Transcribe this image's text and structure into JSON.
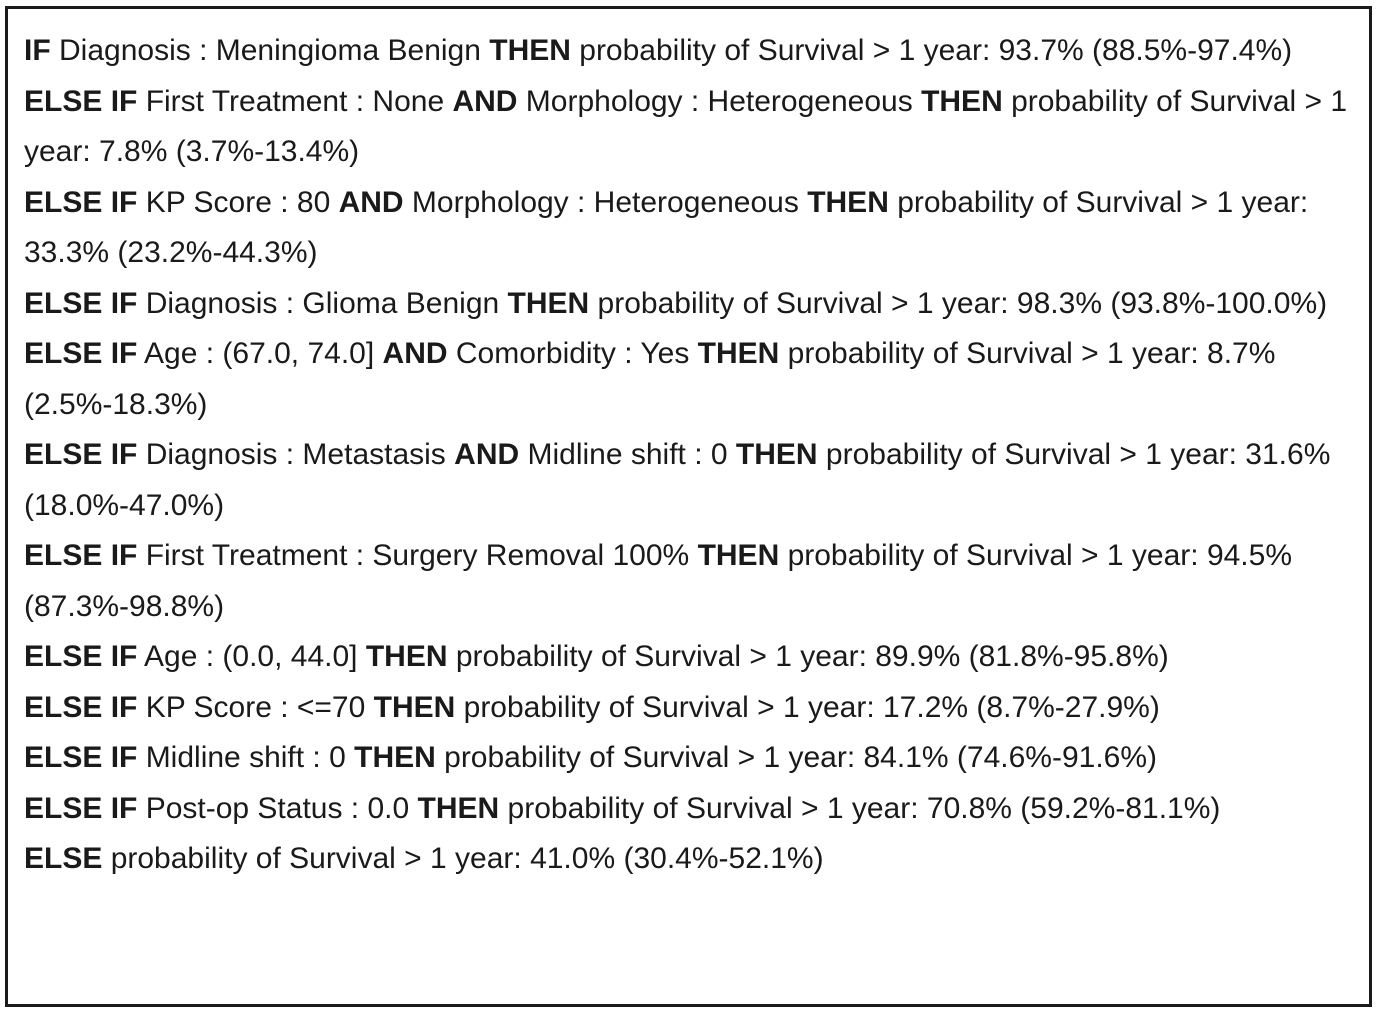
{
  "rules": [
    [
      {
        "t": "IF",
        "b": true
      },
      {
        "t": " Diagnosis : Meningioma Benign "
      },
      {
        "t": "THEN",
        "b": true
      },
      {
        "t": " probability of Survival > 1 year: 93.7% (88.5%-97.4%)"
      }
    ],
    [
      {
        "t": "ELSE IF",
        "b": true
      },
      {
        "t": " First Treatment : None "
      },
      {
        "t": "AND",
        "b": true
      },
      {
        "t": " Morphology : Heterogeneous "
      },
      {
        "t": "THEN",
        "b": true
      },
      {
        "t": " probability of Survival > 1 year: 7.8% (3.7%-13.4%)"
      }
    ],
    [
      {
        "t": "ELSE IF",
        "b": true
      },
      {
        "t": " KP Score : 80 "
      },
      {
        "t": "AND",
        "b": true
      },
      {
        "t": " Morphology : Heterogeneous "
      },
      {
        "t": "THEN",
        "b": true
      },
      {
        "t": " probability of Survival > 1 year: 33.3% (23.2%-44.3%)"
      }
    ],
    [
      {
        "t": "ELSE IF",
        "b": true
      },
      {
        "t": " Diagnosis : Glioma Benign "
      },
      {
        "t": "THEN",
        "b": true
      },
      {
        "t": " probability of Survival > 1 year: 98.3% (93.8%-100.0%)"
      }
    ],
    [
      {
        "t": "ELSE IF",
        "b": true
      },
      {
        "t": " Age : (67.0, 74.0] "
      },
      {
        "t": "AND",
        "b": true
      },
      {
        "t": " Comorbidity : Yes "
      },
      {
        "t": "THEN",
        "b": true
      },
      {
        "t": " probability of Survival > 1 year: 8.7% (2.5%-18.3%)"
      }
    ],
    [
      {
        "t": "ELSE IF",
        "b": true
      },
      {
        "t": " Diagnosis : Metastasis "
      },
      {
        "t": "AND",
        "b": true
      },
      {
        "t": " Midline shift : 0 "
      },
      {
        "t": "THEN",
        "b": true
      },
      {
        "t": " probability of Survival > 1 year: 31.6% (18.0%-47.0%)"
      }
    ],
    [
      {
        "t": "ELSE IF",
        "b": true
      },
      {
        "t": " First Treatment : Surgery Removal 100% "
      },
      {
        "t": "THEN",
        "b": true
      },
      {
        "t": " probability of Survival > 1 year: 94.5% (87.3%-98.8%)"
      }
    ],
    [
      {
        "t": "ELSE IF",
        "b": true
      },
      {
        "t": " Age : (0.0, 44.0] "
      },
      {
        "t": "THEN",
        "b": true
      },
      {
        "t": " probability of Survival > 1 year: 89.9% (81.8%-95.8%)"
      }
    ],
    [
      {
        "t": "ELSE IF",
        "b": true
      },
      {
        "t": " KP Score : <=70 "
      },
      {
        "t": "THEN",
        "b": true
      },
      {
        "t": " probability of Survival > 1 year: 17.2% (8.7%-27.9%)"
      }
    ],
    [
      {
        "t": "ELSE IF",
        "b": true
      },
      {
        "t": " Midline shift : 0 "
      },
      {
        "t": "THEN",
        "b": true
      },
      {
        "t": " probability of Survival > 1 year: 84.1% (74.6%-91.6%)"
      }
    ],
    [
      {
        "t": "ELSE IF",
        "b": true
      },
      {
        "t": " Post-op Status : 0.0 "
      },
      {
        "t": "THEN",
        "b": true
      },
      {
        "t": " probability of Survival > 1 year: 70.8% (59.2%-81.1%)"
      }
    ],
    [
      {
        "t": "ELSE",
        "b": true
      },
      {
        "t": " probability of Survival > 1 year: 41.0% (30.4%-52.1%)"
      }
    ]
  ]
}
